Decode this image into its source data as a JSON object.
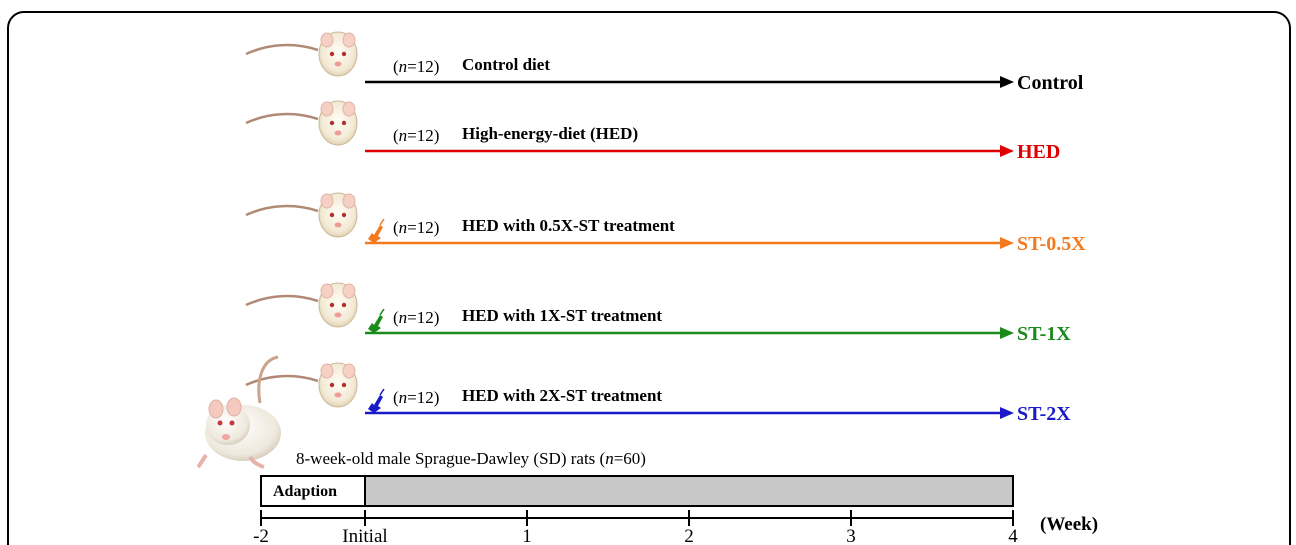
{
  "colors": {
    "control": "#000000",
    "hed": "#e00000",
    "st_05x": "#f47a20",
    "st_1x": "#1a8a1a",
    "st_2x": "#1a1ac8",
    "timeline_fill": "#c8c8c8",
    "frame_border": "#000000"
  },
  "groups": [
    {
      "n_prefix": "(",
      "n_var": "n",
      "n_value": "=12)",
      "diet": "Control diet",
      "label": "Control",
      "color": "#000000",
      "treated": false
    },
    {
      "n_prefix": "(",
      "n_var": "n",
      "n_value": "=12)",
      "diet": "High-energy-diet (HED)",
      "label": "HED",
      "color": "#e00000",
      "treated": false
    },
    {
      "n_prefix": "(",
      "n_var": "n",
      "n_value": "=12)",
      "diet": "HED with 0.5X-ST treatment",
      "label": "ST-0.5X",
      "color": "#f47a20",
      "treated": true
    },
    {
      "n_prefix": "(",
      "n_var": "n",
      "n_value": "=12)",
      "diet": "HED with 1X-ST treatment",
      "label": "ST-1X",
      "color": "#1a8a1a",
      "treated": true
    },
    {
      "n_prefix": "(",
      "n_var": "n",
      "n_value": "=12)",
      "diet": "HED with 2X-ST treatment",
      "label": "ST-2X",
      "color": "#1a1ac8",
      "treated": true
    }
  ],
  "subjects": {
    "text_before": "8-week-old male Sprague-Dawley (SD) rats (",
    "n_var": "n",
    "text_after": "=60)"
  },
  "timeline": {
    "phase_label": "Adaption",
    "ticks": [
      {
        "label": "-2",
        "week": -2
      },
      {
        "label": "Initial",
        "week": 0
      },
      {
        "label": "1",
        "week": 1
      },
      {
        "label": "2",
        "week": 2
      },
      {
        "label": "3",
        "week": 3
      },
      {
        "label": "4",
        "week": 4
      }
    ],
    "unit": "(Week)"
  },
  "icons": {
    "rat_head": "rat-head-icon",
    "treatment": "syringe-icon",
    "rat_full": "rat-icon"
  }
}
